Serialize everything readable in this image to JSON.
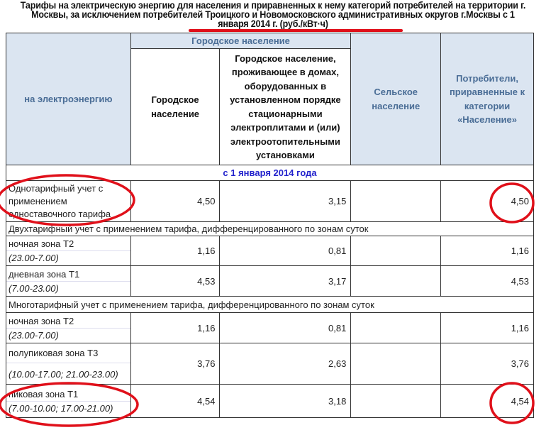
{
  "title": "Тарифы на электрическую энергию для населения и приравненных к нему категорий потребителей на территории г. Москвы, за исключением потребителей Троицкого и Новомосковского административных округов г.Москвы с 1 января 2014 г. (руб./кВт·ч)",
  "header": {
    "col1": "на электроэнергию",
    "group": "Городское население",
    "col2": "Городское население",
    "col3": "Городское население, проживающее в домах, оборудованных в установленном порядке стационарными электроплитами и (или) электроотопительными установками",
    "col4": "Сельское население",
    "col5": "Потребители, приравненные к категории «Население»"
  },
  "date_row": "с 1 января 2014 года",
  "single": {
    "label": "Однотарифный учет с применением одноставочного тарифа",
    "v1": "4,50",
    "v2": "3,15",
    "v3": "",
    "v4": "4,50"
  },
  "two": {
    "section": "Двухтарифный учет с применением тарифа, дифференцированного по зонам суток",
    "rows": [
      {
        "name": "ночная зона Т2",
        "time": "(23.00-7.00)",
        "v1": "1,16",
        "v2": "0,81",
        "v3": "",
        "v4": "1,16"
      },
      {
        "name": "дневная зона Т1",
        "time": "(7.00-23.00)",
        "v1": "4,53",
        "v2": "3,17",
        "v3": "",
        "v4": "4,53"
      }
    ]
  },
  "multi": {
    "section": "Многотарифный учет с применением тарифа, дифференцированного по зонам суток",
    "rows": [
      {
        "name": "ночная зона Т2",
        "time": "(23.00-7.00)",
        "v1": "1,16",
        "v2": "0,81",
        "v3": "",
        "v4": "1,16"
      },
      {
        "name": "полупиковая зона Т3",
        "time": "(10.00-17.00; 21.00-23.00)",
        "v1": "3,76",
        "v2": "2,63",
        "v3": "",
        "v4": "3,76"
      },
      {
        "name": "пиковая зона Т1",
        "time": "(7.00-10.00; 17.00-21.00)",
        "v1": "4,54",
        "v2": "3,18",
        "v3": "",
        "v4": "4,54"
      }
    ]
  },
  "colors": {
    "header_bg": "#dbe5f1",
    "header_text": "#4a6d96",
    "date_text": "#2222cc",
    "annotation": "#e0101a"
  }
}
